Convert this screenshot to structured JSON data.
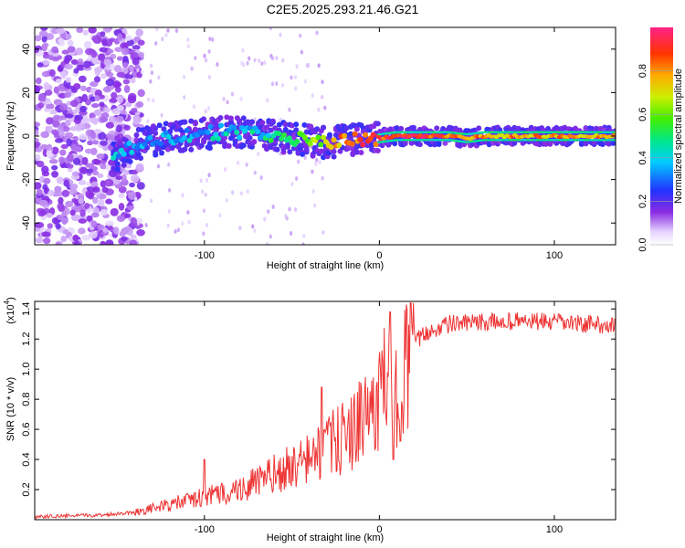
{
  "title": "C2E5.2025.293.21.46.G21",
  "chart_data": [
    {
      "type": "heatmap",
      "xlabel": "Height of straight line (km)",
      "ylabel": "Frequency (Hz)",
      "xlim": [
        -197,
        135
      ],
      "ylim": [
        -50,
        50
      ],
      "xticks": [
        -100,
        0,
        100
      ],
      "yticks": [
        -40,
        -20,
        0,
        20,
        40
      ],
      "colorbar": {
        "label": "Normalized spectral amplitude",
        "range": [
          0,
          1
        ],
        "ticks": [
          "0.0",
          "0.2",
          "0.4",
          "0.6",
          "0.8"
        ],
        "tick_values": [
          0.0,
          0.2,
          0.4,
          0.6,
          0.8
        ]
      },
      "ridge": {
        "x": [
          -150,
          -140,
          -130,
          -120,
          -110,
          -100,
          -90,
          -80,
          -70,
          -60,
          -50,
          -40,
          -30,
          -20,
          -10,
          0,
          10,
          20,
          30,
          40,
          50,
          60,
          70,
          80,
          90,
          100,
          110,
          120,
          130
        ],
        "y": [
          -10,
          -4,
          -2,
          -1,
          0,
          1,
          2,
          2,
          1,
          0,
          -1,
          -2,
          -3,
          -2,
          -1,
          -1,
          0,
          0,
          0,
          0,
          -1,
          0,
          0,
          0,
          0,
          0,
          0,
          0,
          0
        ],
        "amplitude": [
          0.45,
          0.4,
          0.4,
          0.42,
          0.44,
          0.46,
          0.48,
          0.5,
          0.52,
          0.55,
          0.6,
          0.7,
          0.8,
          0.9,
          0.95,
          1.0,
          0.98,
          1.0,
          0.98,
          0.95,
          0.92,
          0.9,
          0.88,
          0.88,
          0.88,
          0.88,
          0.88,
          0.88,
          0.88
        ]
      },
      "noise_region": [
        -197,
        -140
      ]
    },
    {
      "type": "line",
      "xlabel": "Height of straight line (km)",
      "ylabel": "SNR (10 * v/v)",
      "yscale_label": "(x10",
      "yscale_exp": "4",
      "xlim": [
        -197,
        135
      ],
      "ylim": [
        0,
        1.45
      ],
      "xticks": [
        -100,
        0,
        100
      ],
      "yticks": [
        "0.2",
        "0.4",
        "0.6",
        "0.8",
        "1.0",
        "1.2",
        "1.4"
      ],
      "ytick_values": [
        0.2,
        0.4,
        0.6,
        0.8,
        1.0,
        1.2,
        1.4
      ],
      "color": "#ee3333",
      "series_envelope": {
        "x": [
          -197,
          -160,
          -140,
          -120,
          -100,
          -80,
          -60,
          -40,
          -30,
          -20,
          -10,
          0,
          5,
          8,
          10,
          15,
          20,
          30,
          40,
          60,
          80,
          100,
          120,
          135
        ],
        "y": [
          0.02,
          0.03,
          0.05,
          0.1,
          0.15,
          0.2,
          0.3,
          0.4,
          0.48,
          0.55,
          0.65,
          0.8,
          0.95,
          0.55,
          0.85,
          1.05,
          1.18,
          1.26,
          1.3,
          1.31,
          1.32,
          1.31,
          1.3,
          1.29
        ]
      },
      "notable_points": [
        {
          "x": -100,
          "y": 0.4
        },
        {
          "x": -33,
          "y": 0.88
        },
        {
          "x": 6,
          "y": 1.38
        },
        {
          "x": 8,
          "y": 0.4
        }
      ]
    }
  ]
}
